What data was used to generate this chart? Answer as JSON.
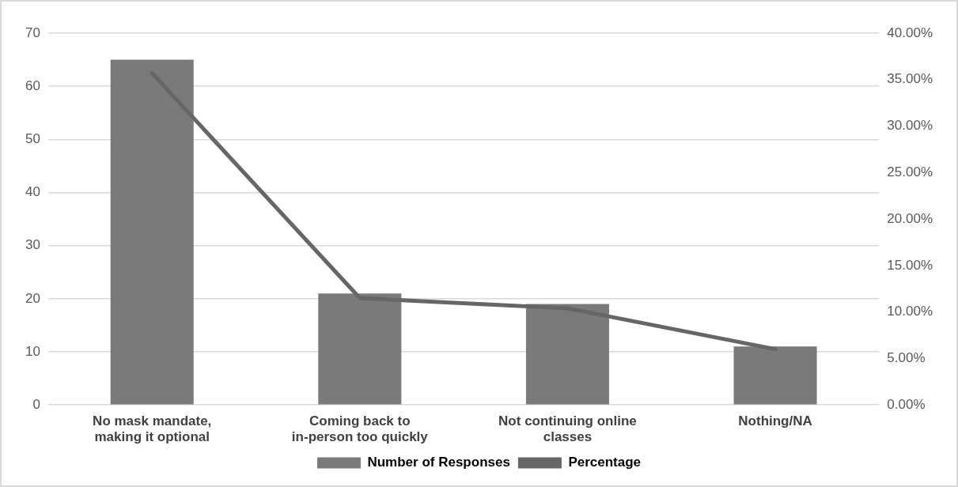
{
  "chart_data": {
    "type": "bar",
    "categories": [
      "No mask mandate, making it optional",
      "Coming back to in-person too quickly",
      "Not continuing online classes",
      "Nothing/NA"
    ],
    "series": [
      {
        "name": "Number of Responses",
        "color": "#7a7a7a",
        "values": [
          65,
          21,
          19,
          11
        ]
      },
      {
        "name": "Percentage",
        "type": "line",
        "axis": "y2",
        "color": "#666666",
        "values": [
          35.7,
          11.5,
          10.4,
          6.0
        ]
      }
    ],
    "ylim": [
      0,
      70
    ],
    "yticks": [
      0,
      10,
      20,
      30,
      40,
      50,
      60,
      70
    ],
    "y2lim": [
      0,
      40
    ],
    "y2ticks": [
      {
        "value": 0,
        "label": "0.00%"
      },
      {
        "value": 5,
        "label": "5.00%"
      },
      {
        "value": 10,
        "label": "10.00%"
      },
      {
        "value": 15,
        "label": "15.00%"
      },
      {
        "value": 20,
        "label": "20.00%"
      },
      {
        "value": 25,
        "label": "25.00%"
      },
      {
        "value": 30,
        "label": "30.00%"
      },
      {
        "value": 35,
        "label": "35.00%"
      },
      {
        "value": 40,
        "label": "40.00%"
      }
    ],
    "grid": "y",
    "legend": "bottom",
    "marker": "none"
  }
}
